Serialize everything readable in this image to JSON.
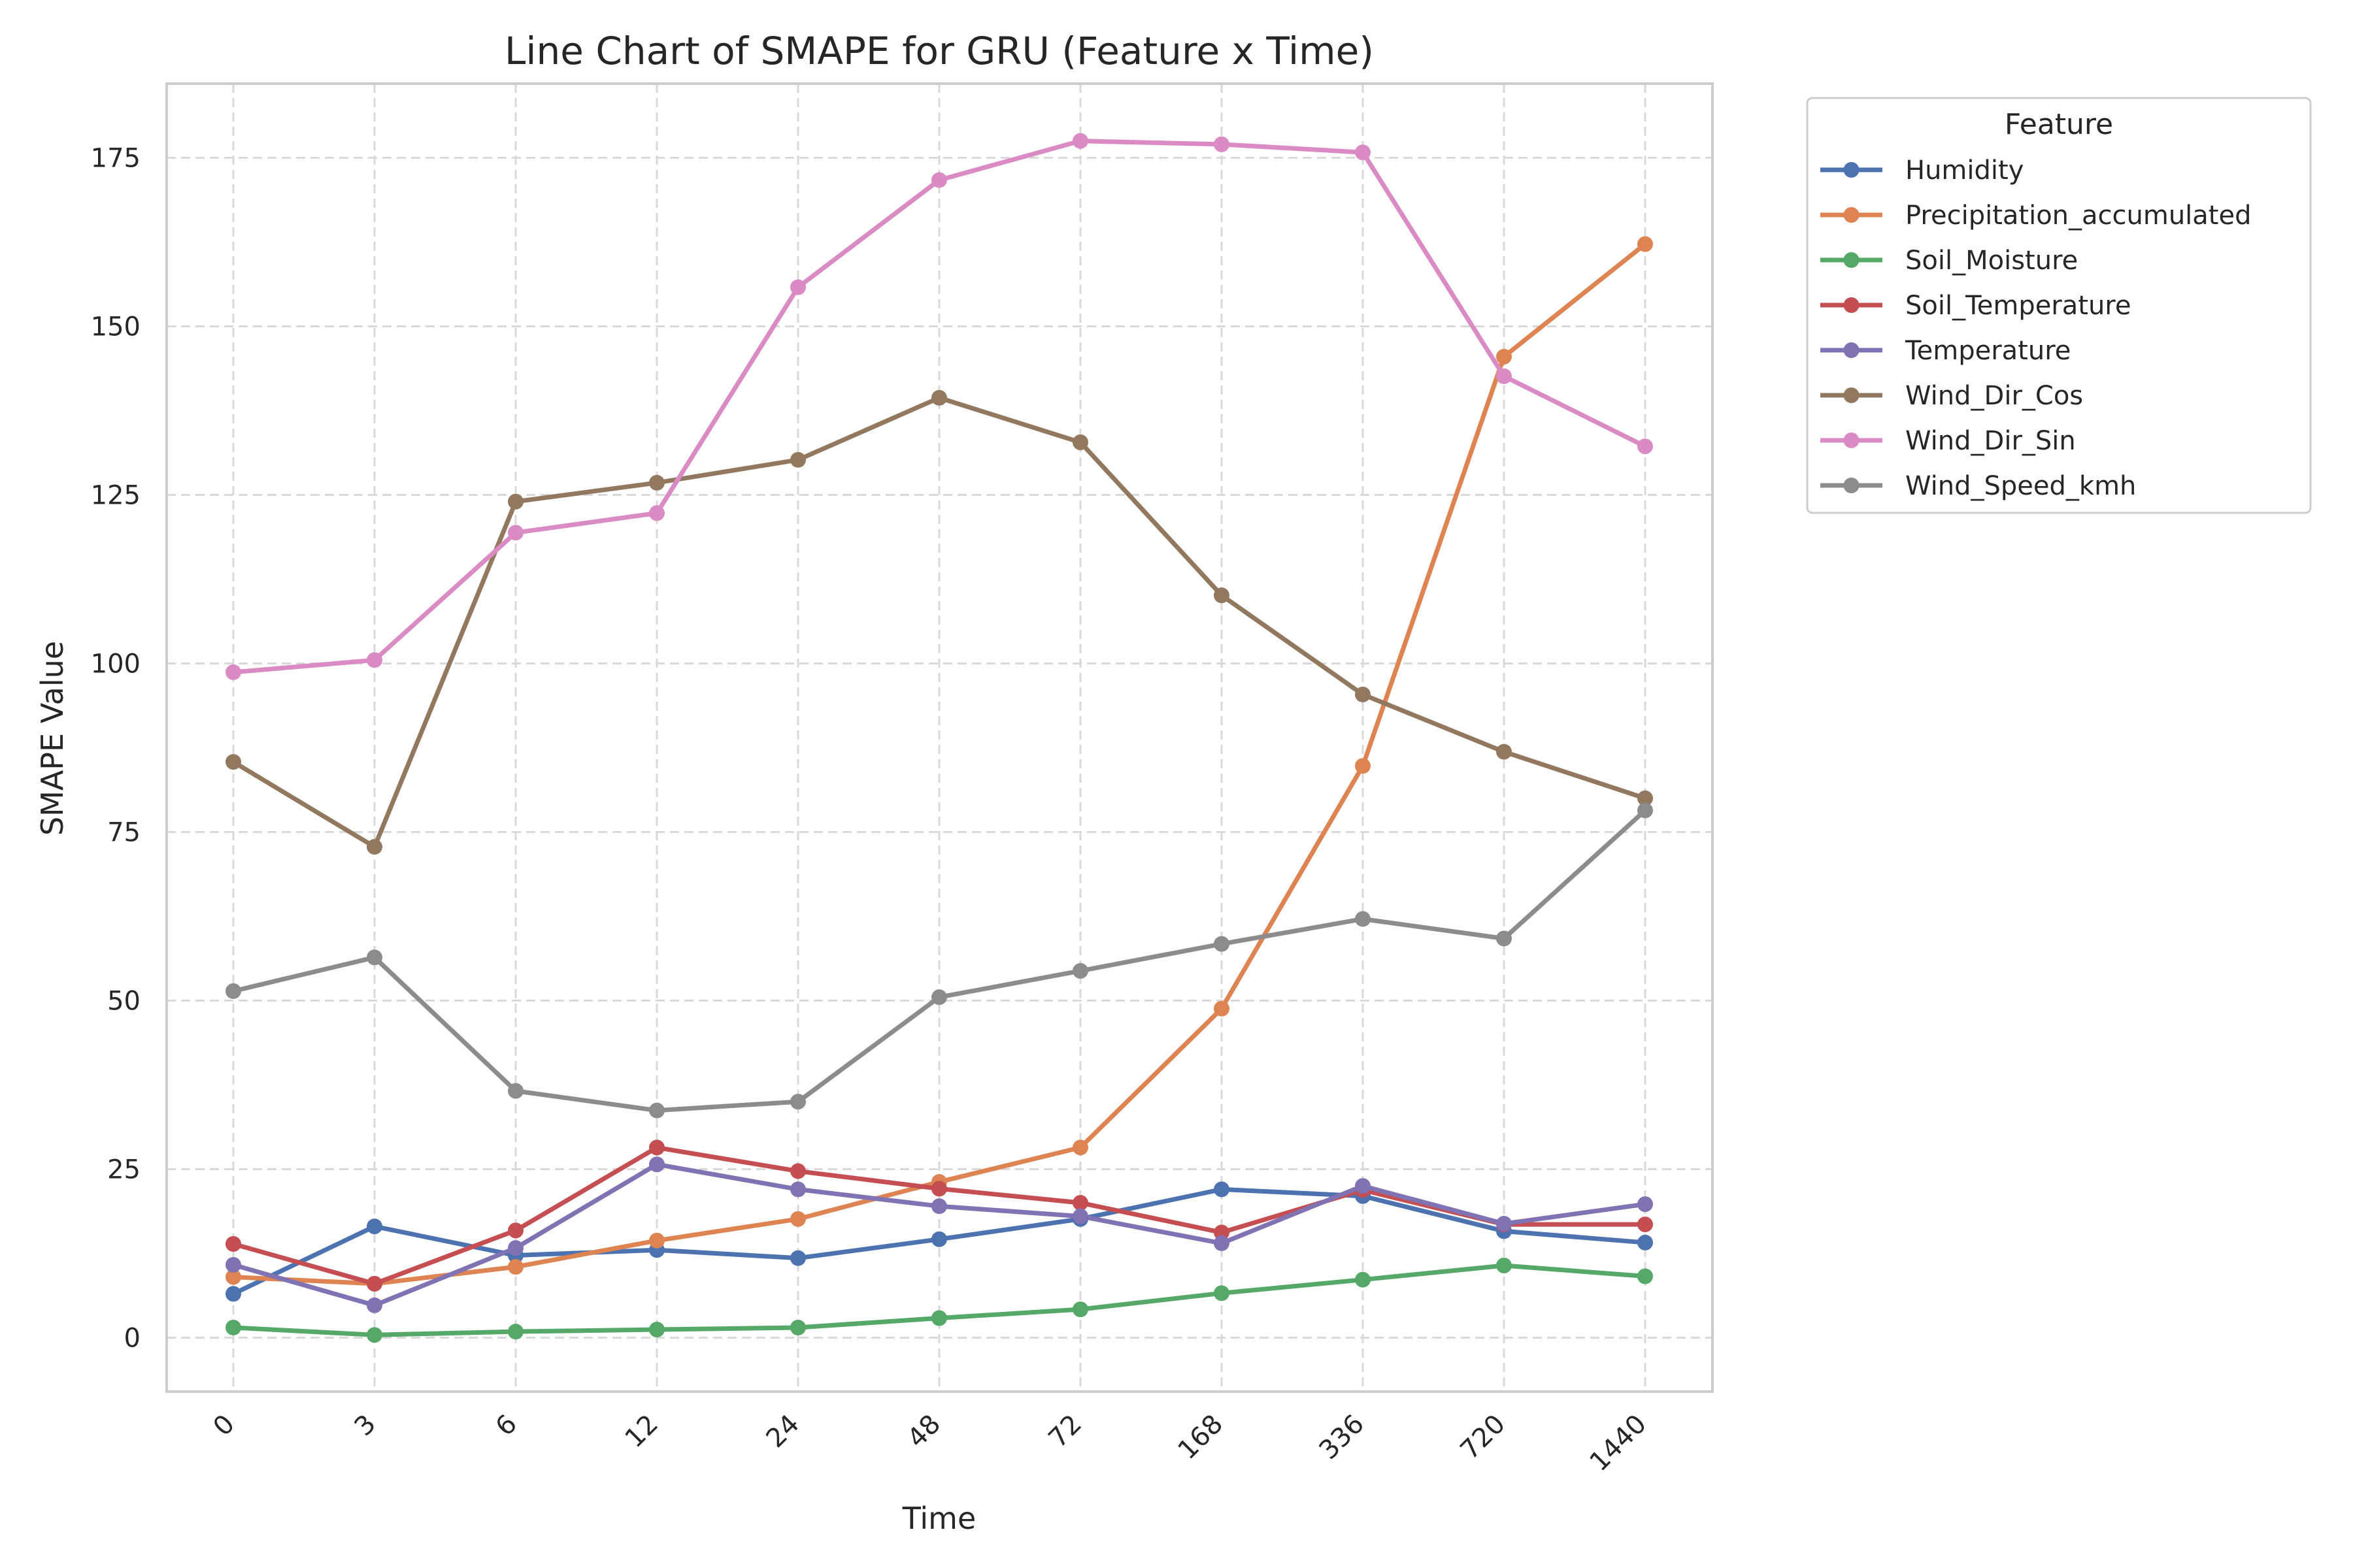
{
  "chart_data": {
    "type": "line",
    "title": "Line Chart of SMAPE for GRU (Feature x Time)",
    "xlabel": "Time",
    "ylabel": "SMAPE Value",
    "categories": [
      "0",
      "3",
      "6",
      "12",
      "24",
      "48",
      "72",
      "168",
      "336",
      "720",
      "1440"
    ],
    "ylim": [
      -8,
      186
    ],
    "yticks": [
      0,
      25,
      50,
      75,
      100,
      125,
      150,
      175
    ],
    "grid": true,
    "legend_title": "Feature",
    "legend_position": "outside-top-right",
    "series": [
      {
        "name": "Humidity",
        "color": "#4c72b0",
        "values": [
          6.5,
          16.5,
          12.2,
          13.0,
          11.8,
          14.6,
          17.6,
          22.0,
          21.0,
          15.8,
          14.1
        ]
      },
      {
        "name": "Precipitation_accumulated",
        "color": "#dd8452",
        "values": [
          9.0,
          8.0,
          10.5,
          14.4,
          17.6,
          23.1,
          28.2,
          48.8,
          84.8,
          145.5,
          162.2
        ]
      },
      {
        "name": "Soil_Moisture",
        "color": "#55a868",
        "values": [
          1.5,
          0.4,
          0.9,
          1.2,
          1.5,
          2.9,
          4.2,
          6.6,
          8.6,
          10.7,
          9.1
        ]
      },
      {
        "name": "Soil_Temperature",
        "color": "#c44e52",
        "values": [
          13.9,
          8.0,
          15.9,
          28.2,
          24.7,
          22.1,
          20.0,
          15.6,
          21.9,
          16.8,
          16.8
        ]
      },
      {
        "name": "Temperature",
        "color": "#8172b3",
        "values": [
          10.8,
          4.8,
          13.3,
          25.7,
          22.0,
          19.5,
          18.0,
          14.0,
          22.5,
          16.9,
          19.8
        ]
      },
      {
        "name": "Wind_Dir_Cos",
        "color": "#937860",
        "values": [
          85.4,
          72.8,
          124.0,
          126.8,
          130.2,
          139.4,
          132.8,
          110.1,
          95.4,
          86.9,
          80.0
        ]
      },
      {
        "name": "Wind_Dir_Sin",
        "color": "#da8bc3",
        "values": [
          98.7,
          100.5,
          119.4,
          122.3,
          155.8,
          171.7,
          177.5,
          177.0,
          175.8,
          142.6,
          132.2
        ]
      },
      {
        "name": "Wind_Speed_kmh",
        "color": "#8c8c8c",
        "values": [
          51.4,
          56.4,
          36.6,
          33.7,
          35.0,
          50.5,
          54.4,
          58.4,
          62.1,
          59.2,
          78.2
        ]
      }
    ]
  }
}
